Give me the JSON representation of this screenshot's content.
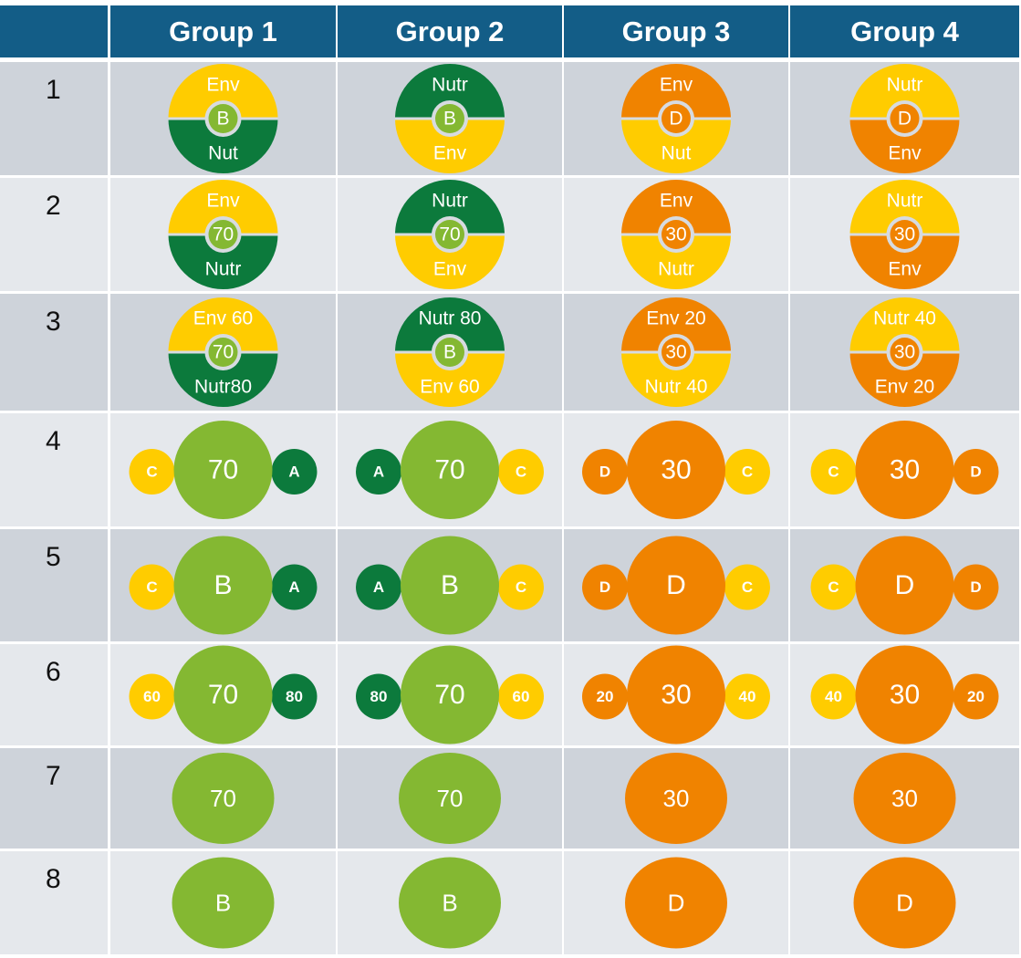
{
  "colors": {
    "header_bg": "#135d87",
    "row_odd": "#ced3da",
    "row_even": "#e5e8ec",
    "light_green": "#84b832",
    "dark_green": "#0c7a3c",
    "yellow": "#ffcc00",
    "orange": "#f08300",
    "ring": "#d7dbe0"
  },
  "header": {
    "corner": "",
    "groups": [
      "Group 1",
      "Group 2",
      "Group 3",
      "Group 4"
    ]
  },
  "rows": [
    {
      "label": "1",
      "cells": [
        {
          "kind": "split",
          "top_color": "yellow",
          "top_label": "Env",
          "bottom_color": "dark_green",
          "bottom_label": "Nut",
          "center_color": "light_green",
          "center_label": "B"
        },
        {
          "kind": "split",
          "top_color": "dark_green",
          "top_label": "Nutr",
          "bottom_color": "yellow",
          "bottom_label": "Env",
          "center_color": "light_green",
          "center_label": "B"
        },
        {
          "kind": "split",
          "top_color": "orange",
          "top_label": "Env",
          "bottom_color": "yellow",
          "bottom_label": "Nut",
          "center_color": "orange",
          "center_label": "D"
        },
        {
          "kind": "split",
          "top_color": "yellow",
          "top_label": "Nutr",
          "bottom_color": "orange",
          "bottom_label": "Env",
          "center_color": "orange",
          "center_label": "D"
        }
      ]
    },
    {
      "label": "2",
      "cells": [
        {
          "kind": "split",
          "top_color": "yellow",
          "top_label": "Env",
          "bottom_color": "dark_green",
          "bottom_label": "Nutr",
          "center_color": "light_green",
          "center_label": "70"
        },
        {
          "kind": "split",
          "top_color": "dark_green",
          "top_label": "Nutr",
          "bottom_color": "yellow",
          "bottom_label": "Env",
          "center_color": "light_green",
          "center_label": "70"
        },
        {
          "kind": "split",
          "top_color": "orange",
          "top_label": "Env",
          "bottom_color": "yellow",
          "bottom_label": "Nutr",
          "center_color": "orange",
          "center_label": "30"
        },
        {
          "kind": "split",
          "top_color": "yellow",
          "top_label": "Nutr",
          "bottom_color": "orange",
          "bottom_label": "Env",
          "center_color": "orange",
          "center_label": "30"
        }
      ]
    },
    {
      "label": "3",
      "cells": [
        {
          "kind": "split",
          "top_color": "yellow",
          "top_label": "Env  60",
          "bottom_color": "dark_green",
          "bottom_label": "Nutr80",
          "center_color": "light_green",
          "center_label": "70"
        },
        {
          "kind": "split",
          "top_color": "dark_green",
          "top_label": "Nutr 80",
          "bottom_color": "yellow",
          "bottom_label": "Env 60",
          "center_color": "light_green",
          "center_label": "B"
        },
        {
          "kind": "split",
          "top_color": "orange",
          "top_label": "Env 20",
          "bottom_color": "yellow",
          "bottom_label": "Nutr 40",
          "center_color": "orange",
          "center_label": "30"
        },
        {
          "kind": "split",
          "top_color": "yellow",
          "top_label": "Nutr 40",
          "bottom_color": "orange",
          "bottom_label": "Env 20",
          "center_color": "orange",
          "center_label": "30"
        }
      ]
    },
    {
      "label": "4",
      "cells": [
        {
          "kind": "trio",
          "left_color": "yellow",
          "left_label": "C",
          "center_color": "light_green",
          "center_label": "70",
          "right_color": "dark_green",
          "right_label": "A"
        },
        {
          "kind": "trio",
          "left_color": "dark_green",
          "left_label": "A",
          "center_color": "light_green",
          "center_label": "70",
          "right_color": "yellow",
          "right_label": "C"
        },
        {
          "kind": "trio",
          "left_color": "orange",
          "left_label": "D",
          "center_color": "orange",
          "center_label": "30",
          "right_color": "yellow",
          "right_label": "C"
        },
        {
          "kind": "trio",
          "left_color": "yellow",
          "left_label": "C",
          "center_color": "orange",
          "center_label": "30",
          "right_color": "orange",
          "right_label": "D"
        }
      ]
    },
    {
      "label": "5",
      "cells": [
        {
          "kind": "trio",
          "left_color": "yellow",
          "left_label": "C",
          "center_color": "light_green",
          "center_label": "B",
          "right_color": "dark_green",
          "right_label": "A"
        },
        {
          "kind": "trio",
          "left_color": "dark_green",
          "left_label": "A",
          "center_color": "light_green",
          "center_label": "B",
          "right_color": "yellow",
          "right_label": "C"
        },
        {
          "kind": "trio",
          "left_color": "orange",
          "left_label": "D",
          "center_color": "orange",
          "center_label": "D",
          "right_color": "yellow",
          "right_label": "C"
        },
        {
          "kind": "trio",
          "left_color": "yellow",
          "left_label": "C",
          "center_color": "orange",
          "center_label": "D",
          "right_color": "orange",
          "right_label": "D"
        }
      ]
    },
    {
      "label": "6",
      "cells": [
        {
          "kind": "trio",
          "left_color": "yellow",
          "left_label": "60",
          "center_color": "light_green",
          "center_label": "70",
          "right_color": "dark_green",
          "right_label": "80"
        },
        {
          "kind": "trio",
          "left_color": "dark_green",
          "left_label": "80",
          "center_color": "light_green",
          "center_label": "70",
          "right_color": "yellow",
          "right_label": "60"
        },
        {
          "kind": "trio",
          "left_color": "orange",
          "left_label": "20",
          "center_color": "orange",
          "center_label": "30",
          "right_color": "yellow",
          "right_label": "40"
        },
        {
          "kind": "trio",
          "left_color": "yellow",
          "left_label": "40",
          "center_color": "orange",
          "center_label": "30",
          "right_color": "orange",
          "right_label": "20"
        }
      ]
    },
    {
      "label": "7",
      "cells": [
        {
          "kind": "single",
          "center_color": "light_green",
          "center_label": "70"
        },
        {
          "kind": "single",
          "center_color": "light_green",
          "center_label": "70"
        },
        {
          "kind": "single",
          "center_color": "orange",
          "center_label": "30"
        },
        {
          "kind": "single",
          "center_color": "orange",
          "center_label": "30"
        }
      ]
    },
    {
      "label": "8",
      "cells": [
        {
          "kind": "single",
          "center_color": "light_green",
          "center_label": "B"
        },
        {
          "kind": "single",
          "center_color": "light_green",
          "center_label": "B"
        },
        {
          "kind": "single",
          "center_color": "orange",
          "center_label": "D"
        },
        {
          "kind": "single",
          "center_color": "orange",
          "center_label": "D"
        }
      ]
    }
  ]
}
